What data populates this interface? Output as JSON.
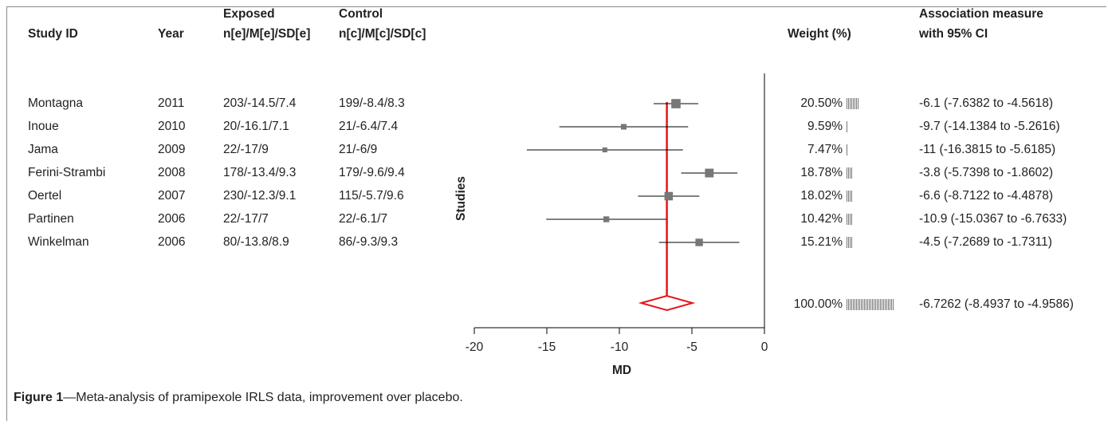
{
  "headers": {
    "study_id": "Study ID",
    "year": "Year",
    "exposed_line1": "Exposed",
    "exposed_line2": "n[e]/M[e]/SD[e]",
    "control_line1": "Control",
    "control_line2": "n[c]/M[c]/SD[c]",
    "weight": "Weight (%)",
    "assoc_line1": "Association measure",
    "assoc_line2": "with 95% CI"
  },
  "caption": {
    "label": "Figure 1",
    "dash": "—",
    "text": "Meta-analysis of pramipexole IRLS data, improvement over placebo."
  },
  "colors": {
    "text": "#231f20",
    "axis": "#000000",
    "summary": "#e8141a",
    "marker": "#777777"
  },
  "chart_data": {
    "type": "forest",
    "xlabel": "MD",
    "ylabel": "Studies",
    "xlim": [
      -20,
      0
    ],
    "xticks": [
      -20,
      -15,
      -10,
      -5,
      0
    ],
    "xtick_labels": [
      "-20",
      "-15",
      "-10",
      "-5",
      "0"
    ],
    "rows": [
      {
        "study": "Montagna",
        "year": "2011",
        "exposed": "203/-14.5/7.4",
        "control": "199/-8.4/8.3",
        "weight": 20.5,
        "weight_label": "20.50%",
        "weight_bars": 8,
        "md": -6.1,
        "lo": -7.6382,
        "hi": -4.5618,
        "ci_label": "-6.1 (-7.6382 to -4.5618)"
      },
      {
        "study": "Inoue",
        "year": "2010",
        "exposed": "20/-16.1/7.1",
        "control": "21/-6.4/7.4",
        "weight": 9.59,
        "weight_label": "9.59%",
        "weight_bars": 1,
        "md": -9.7,
        "lo": -14.1384,
        "hi": -5.2616,
        "ci_label": "-9.7 (-14.1384 to -5.2616)"
      },
      {
        "study": "Jama",
        "year": "2009",
        "exposed": "22/-17/9",
        "control": "21/-6/9",
        "weight": 7.47,
        "weight_label": "7.47%",
        "weight_bars": 1,
        "md": -11,
        "lo": -16.3815,
        "hi": -5.6185,
        "ci_label": "-11 (-16.3815 to -5.6185)"
      },
      {
        "study": "Ferini-Strambi",
        "year": "2008",
        "exposed": "178/-13.4/9.3",
        "control": "179/-9.6/9.4",
        "weight": 18.78,
        "weight_label": "18.78%",
        "weight_bars": 4,
        "md": -3.8,
        "lo": -5.7398,
        "hi": -1.8602,
        "ci_label": "-3.8 (-5.7398 to -1.8602)"
      },
      {
        "study": "Oertel",
        "year": "2007",
        "exposed": "230/-12.3/9.1",
        "control": "115/-5.7/9.6",
        "weight": 18.02,
        "weight_label": "18.02%",
        "weight_bars": 4,
        "md": -6.6,
        "lo": -8.7122,
        "hi": -4.4878,
        "ci_label": "-6.6 (-8.7122 to -4.4878)"
      },
      {
        "study": "Partinen",
        "year": "2006",
        "exposed": "22/-17/7",
        "control": "22/-6.1/7",
        "weight": 10.42,
        "weight_label": "10.42%",
        "weight_bars": 4,
        "md": -10.9,
        "lo": -15.0367,
        "hi": -6.7633,
        "ci_label": "-10.9 (-15.0367 to -6.7633)"
      },
      {
        "study": "Winkelman",
        "year": "2006",
        "exposed": "80/-13.8/8.9",
        "control": "86/-9.3/9.3",
        "weight": 15.21,
        "weight_label": "15.21%",
        "weight_bars": 4,
        "md": -4.5,
        "lo": -7.2689,
        "hi": -1.7311,
        "ci_label": "-4.5 (-7.2689 to -1.7311)"
      }
    ],
    "summary": {
      "weight": 100,
      "weight_label": "100.00%",
      "weight_bars": 30,
      "md": -6.7262,
      "lo": -8.4937,
      "hi": -4.9586,
      "ci_label": "-6.7262 (-8.4937 to -4.9586)"
    }
  }
}
